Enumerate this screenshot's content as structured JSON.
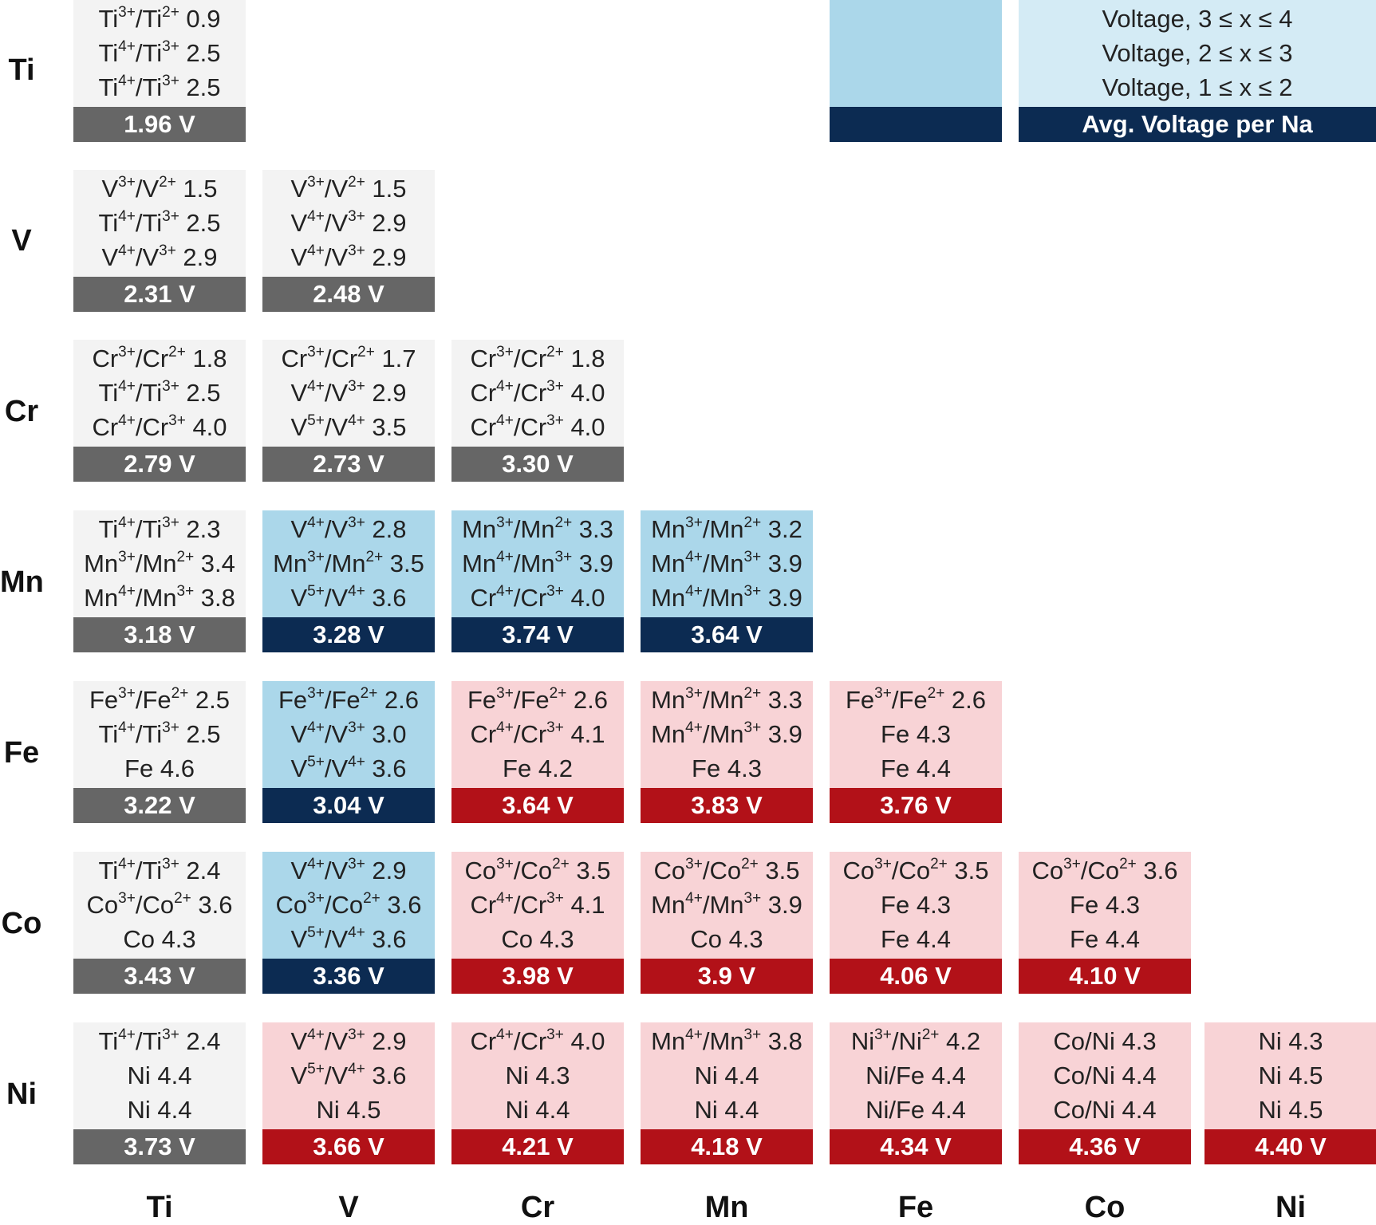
{
  "colors": {
    "gray_bg": "#f3f3f3",
    "gray_bar": "#666666",
    "blue_bg": "#abd7ea",
    "blue_bar": "#0c2b52",
    "pink_bg": "#f8d3d6",
    "red_bar": "#b21118"
  },
  "row_labels": [
    "Ti",
    "V",
    "Cr",
    "Mn",
    "Fe",
    "Co",
    "Ni"
  ],
  "col_labels": [
    "Ti",
    "V",
    "Cr",
    "Mn",
    "Fe",
    "Co",
    "Ni"
  ],
  "legend": {
    "lines": [
      "Voltage, 3 ≤ x ≤ 4",
      "Voltage, 2 ≤ x ≤ 3",
      "Voltage, 1 ≤ x ≤ 2"
    ],
    "bar_label": "Avg. Voltage per Na"
  },
  "cells": [
    {
      "row": 0,
      "col": 0,
      "theme": "gray",
      "lines": [
        "Ti^{3+}/Ti^{2+} 0.9",
        "Ti^{4+}/Ti^{3+} 2.5",
        "Ti^{4+}/Ti^{3+} 2.5"
      ],
      "voltage": "1.96 V"
    },
    {
      "row": 1,
      "col": 0,
      "theme": "gray",
      "lines": [
        "V^{3+}/V^{2+} 1.5",
        "Ti^{4+}/Ti^{3+} 2.5",
        "V^{4+}/V^{3+} 2.9"
      ],
      "voltage": "2.31 V"
    },
    {
      "row": 1,
      "col": 1,
      "theme": "gray",
      "lines": [
        "V^{3+}/V^{2+} 1.5",
        "V^{4+}/V^{3+} 2.9",
        "V^{4+}/V^{3+} 2.9"
      ],
      "voltage": "2.48 V"
    },
    {
      "row": 2,
      "col": 0,
      "theme": "gray",
      "lines": [
        "Cr^{3+}/Cr^{2+} 1.8",
        "Ti^{4+}/Ti^{3+} 2.5",
        "Cr^{4+}/Cr^{3+} 4.0"
      ],
      "voltage": "2.79 V"
    },
    {
      "row": 2,
      "col": 1,
      "theme": "gray",
      "lines": [
        "Cr^{3+}/Cr^{2+} 1.7",
        "V^{4+}/V^{3+} 2.9",
        "V^{5+}/V^{4+} 3.5"
      ],
      "voltage": "2.73 V"
    },
    {
      "row": 2,
      "col": 2,
      "theme": "gray",
      "lines": [
        "Cr^{3+}/Cr^{2+} 1.8",
        "Cr^{4+}/Cr^{3+} 4.0",
        "Cr^{4+}/Cr^{3+} 4.0"
      ],
      "voltage": "3.30 V"
    },
    {
      "row": 3,
      "col": 0,
      "theme": "gray",
      "lines": [
        "Ti^{4+}/Ti^{3+} 2.3",
        "Mn^{3+}/Mn^{2+} 3.4",
        "Mn^{4+}/Mn^{3+} 3.8"
      ],
      "voltage": "3.18 V"
    },
    {
      "row": 3,
      "col": 1,
      "theme": "blue",
      "lines": [
        "V^{4+}/V^{3+} 2.8",
        "Mn^{3+}/Mn^{2+} 3.5",
        "V^{5+}/V^{4+} 3.6"
      ],
      "voltage": "3.28 V"
    },
    {
      "row": 3,
      "col": 2,
      "theme": "blue",
      "lines": [
        "Mn^{3+}/Mn^{2+} 3.3",
        "Mn^{4+}/Mn^{3+} 3.9",
        "Cr^{4+}/Cr^{3+} 4.0"
      ],
      "voltage": "3.74 V"
    },
    {
      "row": 3,
      "col": 3,
      "theme": "blue",
      "lines": [
        "Mn^{3+}/Mn^{2+} 3.2",
        "Mn^{4+}/Mn^{3+} 3.9",
        "Mn^{4+}/Mn^{3+} 3.9"
      ],
      "voltage": "3.64 V"
    },
    {
      "row": 4,
      "col": 0,
      "theme": "gray",
      "lines": [
        "Fe^{3+}/Fe^{2+} 2.5",
        "Ti^{4+}/Ti^{3+} 2.5",
        "Fe 4.6"
      ],
      "voltage": "3.22 V"
    },
    {
      "row": 4,
      "col": 1,
      "theme": "blue",
      "lines": [
        "Fe^{3+}/Fe^{2+} 2.6",
        "V^{4+}/V^{3+} 3.0",
        "V^{5+}/V^{4+} 3.6"
      ],
      "voltage": "3.04 V"
    },
    {
      "row": 4,
      "col": 2,
      "theme": "pink",
      "lines": [
        "Fe^{3+}/Fe^{2+} 2.6",
        "Cr^{4+}/Cr^{3+} 4.1",
        "Fe 4.2"
      ],
      "voltage": "3.64 V"
    },
    {
      "row": 4,
      "col": 3,
      "theme": "pink",
      "lines": [
        "Mn^{3+}/Mn^{2+} 3.3",
        "Mn^{4+}/Mn^{3+} 3.9",
        "Fe 4.3"
      ],
      "voltage": "3.83 V"
    },
    {
      "row": 4,
      "col": 4,
      "theme": "pink",
      "lines": [
        "Fe^{3+}/Fe^{2+} 2.6",
        "Fe 4.3",
        "Fe 4.4"
      ],
      "voltage": "3.76 V"
    },
    {
      "row": 5,
      "col": 0,
      "theme": "gray",
      "lines": [
        "Ti^{4+}/Ti^{3+} 2.4",
        "Co^{3+}/Co^{2+} 3.6",
        "Co 4.3"
      ],
      "voltage": "3.43 V"
    },
    {
      "row": 5,
      "col": 1,
      "theme": "blue",
      "lines": [
        "V^{4+}/V^{3+} 2.9",
        "Co^{3+}/Co^{2+} 3.6",
        "V^{5+}/V^{4+} 3.6"
      ],
      "voltage": "3.36 V"
    },
    {
      "row": 5,
      "col": 2,
      "theme": "pink",
      "lines": [
        "Co^{3+}/Co^{2+} 3.5",
        "Cr^{4+}/Cr^{3+} 4.1",
        "Co 4.3"
      ],
      "voltage": "3.98 V"
    },
    {
      "row": 5,
      "col": 3,
      "theme": "pink",
      "lines": [
        "Co^{3+}/Co^{2+} 3.5",
        "Mn^{4+}/Mn^{3+} 3.9",
        "Co 4.3"
      ],
      "voltage": "3.9 V"
    },
    {
      "row": 5,
      "col": 4,
      "theme": "pink",
      "lines": [
        "Co^{3+}/Co^{2+} 3.5",
        "Fe 4.3",
        "Fe 4.4"
      ],
      "voltage": "4.06 V"
    },
    {
      "row": 5,
      "col": 5,
      "theme": "pink",
      "lines": [
        "Co^{3+}/Co^{2+} 3.6",
        "Fe 4.3",
        "Fe 4.4"
      ],
      "voltage": "4.10 V"
    },
    {
      "row": 6,
      "col": 0,
      "theme": "gray",
      "lines": [
        "Ti^{4+}/Ti^{3+} 2.4",
        "Ni 4.4",
        "Ni 4.4"
      ],
      "voltage": "3.73 V"
    },
    {
      "row": 6,
      "col": 1,
      "theme": "pink",
      "lines": [
        "V^{4+}/V^{3+} 2.9",
        "V^{5+}/V^{4+} 3.6",
        "Ni 4.5"
      ],
      "voltage": "3.66 V"
    },
    {
      "row": 6,
      "col": 2,
      "theme": "pink",
      "lines": [
        "Cr^{4+}/Cr^{3+} 4.0",
        "Ni 4.3",
        "Ni 4.4"
      ],
      "voltage": "4.21 V"
    },
    {
      "row": 6,
      "col": 3,
      "theme": "pink",
      "lines": [
        "Mn^{4+}/Mn^{3+} 3.8",
        "Ni 4.4",
        "Ni 4.4"
      ],
      "voltage": "4.18 V"
    },
    {
      "row": 6,
      "col": 4,
      "theme": "pink",
      "lines": [
        "Ni^{3+}/Ni^{2+} 4.2",
        "Ni/Fe 4.4",
        "Ni/Fe 4.4"
      ],
      "voltage": "4.34 V"
    },
    {
      "row": 6,
      "col": 5,
      "theme": "pink",
      "lines": [
        "Co/Ni 4.3",
        "Co/Ni 4.4",
        "Co/Ni 4.4"
      ],
      "voltage": "4.36 V"
    },
    {
      "row": 6,
      "col": 6,
      "theme": "pink",
      "lines": [
        "Ni 4.3",
        "Ni 4.5",
        "Ni 4.5"
      ],
      "voltage": "4.40 V"
    }
  ]
}
